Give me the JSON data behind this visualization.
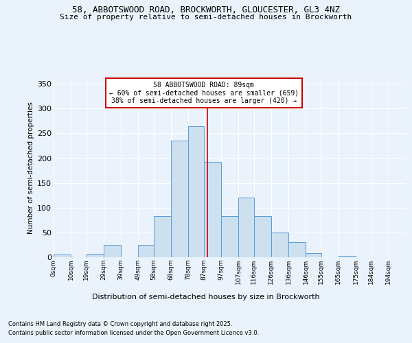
{
  "title_line1": "58, ABBOTSWOOD ROAD, BROCKWORTH, GLOUCESTER, GL3 4NZ",
  "title_line2": "Size of property relative to semi-detached houses in Brockworth",
  "xlabel": "Distribution of semi-detached houses by size in Brockworth",
  "ylabel": "Number of semi-detached properties",
  "footnote1": "Contains HM Land Registry data © Crown copyright and database right 2025.",
  "footnote2": "Contains public sector information licensed under the Open Government Licence v3.0.",
  "annotation_line1": "58 ABBOTSWOOD ROAD: 89sqm",
  "annotation_line2": "← 60% of semi-detached houses are smaller (659)",
  "annotation_line3": "38% of semi-detached houses are larger (420) →",
  "property_size": 89,
  "bar_left_edges": [
    0,
    10,
    19,
    29,
    39,
    49,
    58,
    68,
    78,
    87,
    97,
    107,
    116,
    126,
    136,
    146,
    155,
    165,
    175,
    184,
    194
  ],
  "bar_heights": [
    5,
    0,
    7,
    25,
    0,
    25,
    83,
    235,
    265,
    193,
    83,
    120,
    83,
    50,
    30,
    8,
    0,
    3,
    0,
    0,
    0
  ],
  "bar_widths": [
    10,
    9,
    10,
    10,
    10,
    9,
    10,
    10,
    9,
    10,
    10,
    9,
    10,
    10,
    10,
    9,
    10,
    10,
    9,
    10,
    10
  ],
  "tick_labels": [
    "0sqm",
    "10sqm",
    "19sqm",
    "29sqm",
    "39sqm",
    "49sqm",
    "58sqm",
    "68sqm",
    "78sqm",
    "87sqm",
    "97sqm",
    "107sqm",
    "116sqm",
    "126sqm",
    "136sqm",
    "146sqm",
    "155sqm",
    "165sqm",
    "175sqm",
    "184sqm",
    "194sqm"
  ],
  "bar_face_color": "#cde0f0",
  "bar_edge_color": "#5b9bd5",
  "vline_color": "#cc0000",
  "annotation_box_edge_color": "#cc0000",
  "background_color": "#eaf2fb",
  "grid_color": "#ffffff",
  "ylim_max": 360,
  "yticks": [
    0,
    50,
    100,
    150,
    200,
    250,
    300,
    350
  ]
}
